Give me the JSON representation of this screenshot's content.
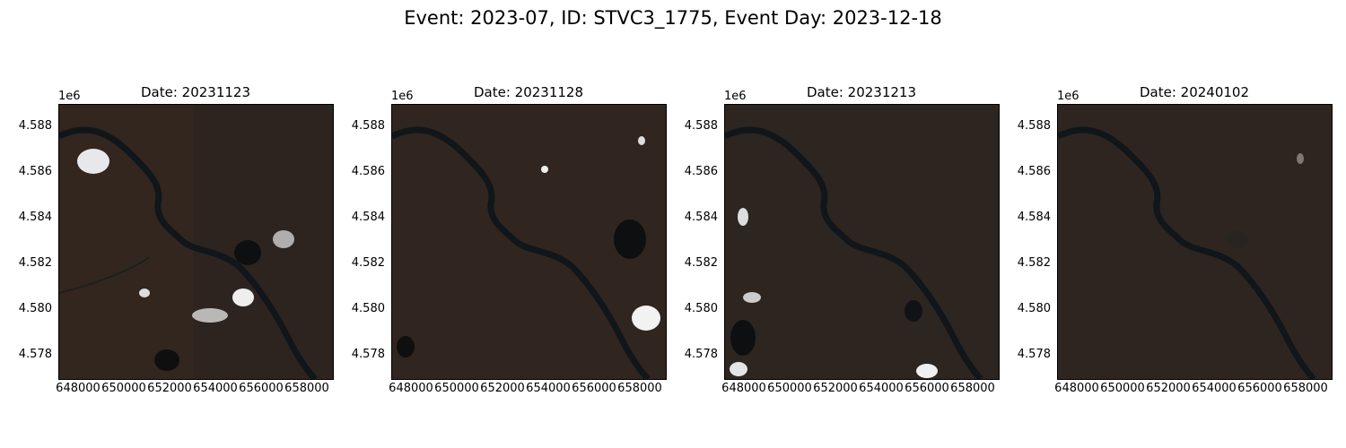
{
  "figure": {
    "suptitle": "Event: 2023-07, ID: STVC3_1775, Event Day: 2023-12-18",
    "axis_offset": "1e6",
    "yticks": [
      "4.588",
      "4.586",
      "4.584",
      "4.582",
      "4.580",
      "4.578"
    ],
    "xticks": [
      "648000",
      "650000",
      "652000",
      "654000",
      "656000",
      "658000"
    ]
  },
  "panels": [
    {
      "title": "Date: 20231123",
      "cloud_cover": "high"
    },
    {
      "title": "Date: 20231128",
      "cloud_cover": "low"
    },
    {
      "title": "Date: 20231213",
      "cloud_cover": "medium"
    },
    {
      "title": "Date: 20240102",
      "cloud_cover": "none"
    }
  ]
}
